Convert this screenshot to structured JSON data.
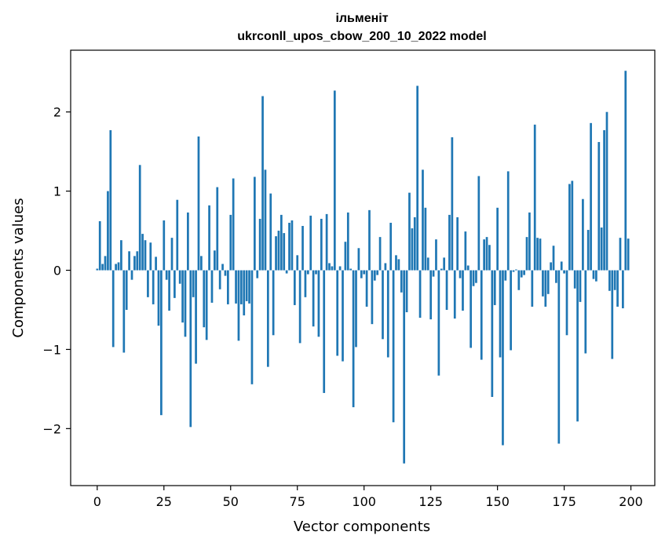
{
  "chart_data": {
    "type": "bar",
    "title": "ільменіт",
    "subtitle": "ukrconll_upos_cbow_200_10_2022 model",
    "xlabel": "Vector components",
    "ylabel": "Components values",
    "xlim": [
      -9.95,
      208.95
    ],
    "ylim": [
      -2.72,
      2.78
    ],
    "x_ticks": [
      0,
      25,
      50,
      75,
      100,
      125,
      150,
      175,
      200
    ],
    "x_tick_labels": [
      "0",
      "25",
      "50",
      "75",
      "100",
      "125",
      "150",
      "175",
      "200"
    ],
    "y_ticks": [
      -2,
      -1,
      0,
      1,
      2
    ],
    "y_tick_labels": [
      "−2",
      "−1",
      "0",
      "1",
      "2"
    ],
    "bar_color": "#1f77b4",
    "values": [
      0.02,
      0.62,
      0.08,
      0.18,
      1.0,
      1.77,
      -0.97,
      0.08,
      0.1,
      0.38,
      -1.04,
      -0.5,
      0.24,
      -0.12,
      0.18,
      0.24,
      1.33,
      0.46,
      0.38,
      -0.34,
      0.35,
      -0.43,
      0.17,
      -0.7,
      -1.83,
      0.63,
      -0.12,
      -0.51,
      0.41,
      -0.35,
      0.89,
      -0.17,
      -0.66,
      -0.84,
      0.73,
      -1.98,
      -0.34,
      -1.18,
      1.69,
      0.18,
      -0.72,
      -0.88,
      0.82,
      -0.41,
      0.25,
      1.05,
      -0.24,
      0.08,
      -0.07,
      -0.43,
      0.7,
      1.16,
      -0.42,
      -0.89,
      -0.43,
      -0.57,
      -0.39,
      -0.42,
      -1.44,
      1.18,
      -0.1,
      0.65,
      2.2,
      1.27,
      -1.22,
      0.97,
      -0.82,
      0.43,
      0.5,
      0.7,
      0.47,
      -0.04,
      0.6,
      0.63,
      -0.44,
      0.19,
      -0.92,
      0.56,
      -0.34,
      -0.05,
      0.69,
      -0.71,
      -0.05,
      -0.84,
      0.65,
      -1.55,
      0.71,
      0.09,
      0.05,
      2.27,
      -1.08,
      0.05,
      -1.15,
      0.36,
      0.73,
      0.02,
      -1.73,
      -0.97,
      0.28,
      -0.1,
      -0.05,
      -0.46,
      0.76,
      -0.68,
      -0.13,
      -0.06,
      0.42,
      -0.87,
      0.09,
      -1.1,
      0.6,
      -1.92,
      0.19,
      0.14,
      -0.28,
      -2.44,
      -0.53,
      0.98,
      0.53,
      0.67,
      2.33,
      -0.6,
      1.27,
      0.79,
      0.16,
      -0.62,
      -0.08,
      0.39,
      -1.33,
      0.02,
      0.16,
      -0.5,
      0.7,
      1.68,
      -0.61,
      0.67,
      -0.1,
      -0.51,
      0.49,
      0.06,
      -0.98,
      -0.2,
      -0.16,
      1.19,
      -1.13,
      0.39,
      0.42,
      0.32,
      -1.6,
      -0.44,
      0.79,
      -1.1,
      -2.21,
      -0.13,
      1.25,
      -1.01,
      -0.02,
      0.01,
      -0.25,
      -0.09,
      -0.06,
      0.42,
      0.73,
      -0.46,
      1.84,
      0.41,
      0.4,
      -0.33,
      -0.46,
      -0.3,
      0.1,
      0.31,
      -0.16,
      -2.19,
      0.11,
      -0.04,
      -0.82,
      1.09,
      1.13,
      -0.23,
      -1.91,
      -0.4,
      0.9,
      -1.05,
      0.51,
      1.86,
      -0.11,
      -0.14,
      1.62,
      0.54,
      1.77,
      2.0,
      -0.26,
      -1.12,
      -0.25,
      -0.46,
      0.41,
      -0.48,
      2.52,
      0.4
    ]
  }
}
